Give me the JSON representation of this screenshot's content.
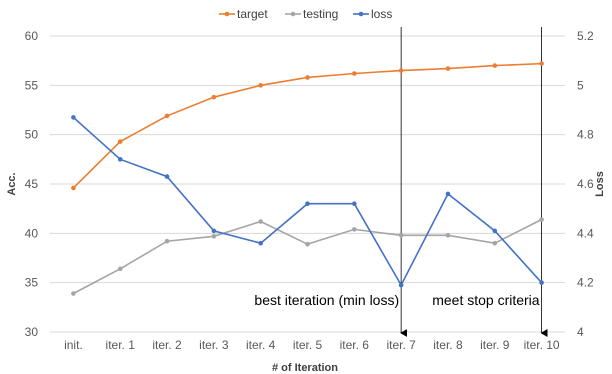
{
  "chart_data": {
    "type": "line",
    "categories": [
      "init.",
      "iter. 1",
      "iter. 2",
      "iter. 3",
      "iter. 4",
      "iter. 5",
      "iter. 6",
      "iter. 7",
      "iter. 8",
      "iter. 9",
      "iter. 10"
    ],
    "xlabel": "# of Iteration",
    "ylabel": "Acc.",
    "y2label": "Loss",
    "ylim": [
      30,
      60
    ],
    "yticks": [
      30,
      35,
      40,
      45,
      50,
      55,
      60
    ],
    "y2lim": [
      4,
      5.2
    ],
    "y2ticks": [
      "4",
      "4.2",
      "4.4",
      "4.6",
      "4.8",
      "5",
      "5.2"
    ],
    "grid": true,
    "legend": "top",
    "series": [
      {
        "name": "target",
        "axis": "left",
        "color": "#ED7D31",
        "values": [
          44.6,
          49.3,
          51.9,
          53.8,
          55.0,
          55.8,
          56.2,
          56.5,
          56.7,
          57.0,
          57.2
        ]
      },
      {
        "name": "testing",
        "axis": "left",
        "color": "#A5A5A5",
        "values": [
          33.9,
          36.4,
          39.2,
          39.7,
          41.2,
          38.9,
          40.4,
          39.8,
          39.8,
          39.0,
          41.4
        ]
      },
      {
        "name": "loss",
        "axis": "right",
        "color": "#4472C4",
        "values": [
          4.87,
          4.7,
          4.63,
          4.41,
          4.36,
          4.52,
          4.52,
          4.19,
          4.56,
          4.41,
          4.2
        ]
      }
    ],
    "annotations": [
      {
        "text": "best iteration (min loss)",
        "category_index": 7
      },
      {
        "text": "meet stop criteria",
        "category_index": 10
      }
    ]
  }
}
